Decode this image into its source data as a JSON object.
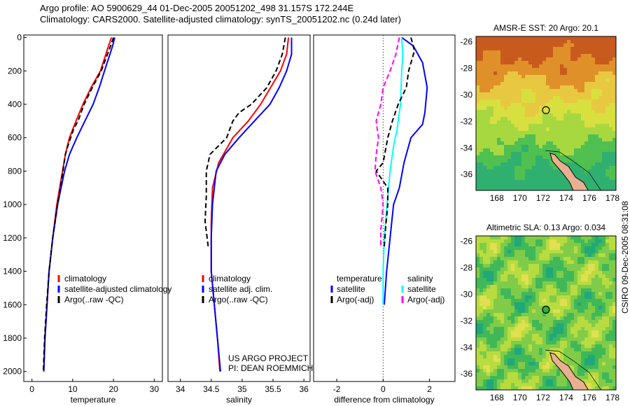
{
  "header": {
    "line1": "Argo profile: AO 5900629_44 01-Dec-2005 20051202_498 31.157S 172.244E",
    "line2": "Climatology: CARS2000. Satellite-adjusted climatology: synTS_20051202.nc (0.24d later)"
  },
  "credit": {
    "project": "US ARGO PROJECT",
    "pi": "PI: DEAN ROEMMICH",
    "stamp": "CSIRO 09-Dec-2005 08:31:08"
  },
  "colors": {
    "clim": "#ff0000",
    "sat": "#0000ff",
    "argo": "#000000",
    "sal_sat": "#00ffff",
    "sal_argo": "#ff00ff"
  },
  "chart_data": [
    {
      "type": "line",
      "name": "temperature",
      "xlabel": "temperature",
      "xlim": [
        -2,
        32
      ],
      "ylim": [
        -15,
        2060
      ],
      "y_inverted": true,
      "xticks": [
        0,
        10,
        20,
        30
      ],
      "yticks": [
        0,
        200,
        400,
        600,
        800,
        1000,
        1200,
        1400,
        1600,
        1800,
        2000
      ],
      "legend": [
        "climatology",
        "satellite-adjusted climatology",
        "Argo(..raw -QC)"
      ],
      "legend_placement": "bottom-right",
      "series": [
        {
          "name": "climatology",
          "color": "#ff0000",
          "dash": false,
          "points": [
            [
              19.5,
              0
            ],
            [
              18.8,
              50
            ],
            [
              16.8,
              200
            ],
            [
              14.5,
              300
            ],
            [
              12.5,
              400
            ],
            [
              10.8,
              500
            ],
            [
              9.2,
              600
            ],
            [
              8.2,
              700
            ],
            [
              7.5,
              800
            ],
            [
              6.1,
              1000
            ],
            [
              5.1,
              1200
            ],
            [
              4.2,
              1400
            ],
            [
              3.7,
              1600
            ],
            [
              3.2,
              1800
            ],
            [
              2.9,
              2000
            ]
          ]
        },
        {
          "name": "satellite-adjusted climatology",
          "color": "#0000ff",
          "dash": false,
          "points": [
            [
              20.3,
              0
            ],
            [
              19.8,
              50
            ],
            [
              17.8,
              200
            ],
            [
              16.5,
              300
            ],
            [
              15,
              400
            ],
            [
              13,
              500
            ],
            [
              11,
              600
            ],
            [
              9.2,
              700
            ],
            [
              8,
              800
            ],
            [
              6.3,
              1000
            ],
            [
              5.1,
              1200
            ],
            [
              4.2,
              1400
            ],
            [
              3.7,
              1600
            ],
            [
              3.2,
              1800
            ],
            [
              2.9,
              2000
            ]
          ]
        },
        {
          "name": "Argo(..raw -QC)",
          "color": "#000000",
          "dash": true,
          "points": [
            [
              20,
              0
            ],
            [
              19.3,
              50
            ],
            [
              17,
              200
            ],
            [
              14.8,
              300
            ],
            [
              12.8,
              400
            ],
            [
              11.3,
              500
            ],
            [
              10.2,
              550
            ],
            [
              8.8,
              650
            ],
            [
              8.2,
              700
            ],
            [
              7.6,
              800
            ],
            [
              6.3,
              1000
            ],
            [
              5.1,
              1200
            ],
            [
              4.2,
              1400
            ],
            [
              3.6,
              1600
            ],
            [
              3.1,
              1800
            ],
            [
              2.8,
              2000
            ]
          ]
        }
      ]
    },
    {
      "type": "line",
      "name": "salinity",
      "xlabel": "salinity",
      "xlim": [
        33.8,
        36.1
      ],
      "ylim": [
        -15,
        2060
      ],
      "y_inverted": true,
      "xticks": [
        34,
        34.5,
        35,
        35.5,
        36
      ],
      "legend": [
        "climatology",
        "satellite adj. clim.",
        "Argo(..raw -QC)"
      ],
      "legend_placement": "bottom-right",
      "series": [
        {
          "name": "climatology",
          "color": "#ff0000",
          "dash": false,
          "points": [
            [
              35.75,
              0
            ],
            [
              35.72,
              100
            ],
            [
              35.62,
              200
            ],
            [
              35.3,
              400
            ],
            [
              35.1,
              500
            ],
            [
              34.85,
              600
            ],
            [
              34.62,
              750
            ],
            [
              34.52,
              900
            ],
            [
              34.5,
              1100
            ],
            [
              34.5,
              1400
            ],
            [
              34.55,
              1600
            ],
            [
              34.6,
              1800
            ],
            [
              34.64,
              2000
            ]
          ]
        },
        {
          "name": "satellite adj. clim.",
          "color": "#0000ff",
          "dash": false,
          "points": [
            [
              35.8,
              0
            ],
            [
              35.8,
              100
            ],
            [
              35.72,
              200
            ],
            [
              35.6,
              300
            ],
            [
              35.45,
              400
            ],
            [
              35.2,
              500
            ],
            [
              34.95,
              600
            ],
            [
              34.72,
              700
            ],
            [
              34.58,
              800
            ],
            [
              34.52,
              1000
            ],
            [
              34.5,
              1200
            ],
            [
              34.5,
              1400
            ],
            [
              34.55,
              1600
            ],
            [
              34.6,
              1800
            ],
            [
              34.65,
              2000
            ]
          ]
        },
        {
          "name": "Argo(..raw -QC)",
          "color": "#000000",
          "dash": true,
          "points": [
            [
              35.7,
              0
            ],
            [
              35.65,
              100
            ],
            [
              35.55,
              200
            ],
            [
              35.4,
              300
            ],
            [
              35.15,
              400
            ],
            [
              34.95,
              450
            ],
            [
              34.85,
              500
            ],
            [
              34.75,
              600
            ],
            [
              34.48,
              700
            ],
            [
              34.42,
              800
            ],
            [
              34.42,
              950
            ],
            [
              34.4,
              1100
            ],
            [
              34.45,
              1250
            ]
          ]
        }
      ]
    },
    {
      "type": "line",
      "name": "difference",
      "xlabel": "difference from climatology",
      "xlim": [
        -3,
        3.1
      ],
      "ylim": [
        -15,
        2060
      ],
      "y_inverted": true,
      "xticks": [
        -2,
        0,
        2
      ],
      "zero_line": true,
      "legend": {
        "temp_title": "temperature",
        "sal_title": "salinity",
        "temp_sat": "satellite",
        "temp_argo": "Argo(-adj)",
        "sal_sat": "satellite",
        "sal_argo": "Argo(-adj)"
      },
      "legend_placement": "bottom-right",
      "series": [
        {
          "name": "temperature satellite",
          "color": "#0000ff",
          "dash": false,
          "points": [
            [
              0.8,
              0
            ],
            [
              1.3,
              50
            ],
            [
              1.7,
              150
            ],
            [
              1.9,
              300
            ],
            [
              1.8,
              450
            ],
            [
              1.7,
              520
            ],
            [
              1.2,
              600
            ],
            [
              0.9,
              750
            ],
            [
              0.7,
              900
            ],
            [
              0.45,
              1000
            ],
            [
              0.3,
              1200
            ],
            [
              0.15,
              1400
            ],
            [
              0.05,
              1600
            ]
          ]
        },
        {
          "name": "salinity satellite",
          "color": "#00ffff",
          "dash": false,
          "points": [
            [
              0.8,
              0
            ],
            [
              0.85,
              100
            ],
            [
              0.8,
              200
            ],
            [
              0.75,
              400
            ],
            [
              0.6,
              550
            ],
            [
              0.45,
              650
            ],
            [
              0.3,
              800
            ],
            [
              0.2,
              950
            ],
            [
              0.05,
              1200
            ],
            [
              0,
              1400
            ],
            [
              0,
              1600
            ]
          ]
        },
        {
          "name": "temperature Argo(-adj)",
          "color": "#000000",
          "dash": true,
          "points": [
            [
              1.2,
              0
            ],
            [
              1.35,
              80
            ],
            [
              1.1,
              200
            ],
            [
              1.0,
              300
            ],
            [
              0.65,
              400
            ],
            [
              0.4,
              500
            ],
            [
              0.2,
              600
            ],
            [
              0,
              750
            ],
            [
              -0.3,
              800
            ],
            [
              0.2,
              900
            ],
            [
              0.2,
              1000
            ],
            [
              0.1,
              1150
            ],
            [
              0.05,
              1250
            ]
          ]
        },
        {
          "name": "salinity Argo(-adj)",
          "color": "#ff00ff",
          "dash": true,
          "points": [
            [
              0.7,
              0
            ],
            [
              0.55,
              100
            ],
            [
              0.3,
              200
            ],
            [
              0,
              300
            ],
            [
              -0.1,
              400
            ],
            [
              -0.3,
              500
            ],
            [
              -0.2,
              600
            ],
            [
              -0.3,
              700
            ],
            [
              -0.35,
              800
            ],
            [
              -0.1,
              900
            ],
            [
              0,
              1000
            ],
            [
              -0.1,
              1150
            ],
            [
              -0.1,
              1250
            ]
          ]
        }
      ]
    },
    {
      "type": "heatmap",
      "name": "AMSR-E SST",
      "title": "AMSR-E SST: 20 Argo: 20.1",
      "xticks": [
        168,
        170,
        172,
        174,
        176,
        178
      ],
      "yticks": [
        -26,
        -28,
        -30,
        -32,
        -34,
        -36
      ],
      "xlim": [
        166.2,
        178.3
      ],
      "ylim": [
        -37.2,
        -25.6
      ],
      "argo_position": [
        172.244,
        -31.157
      ],
      "palette": [
        "#c85a1e",
        "#e09028",
        "#e8c840",
        "#d8e040",
        "#a8d840",
        "#50c050",
        "#30b070"
      ]
    },
    {
      "type": "heatmap",
      "name": "Altimetric SLA",
      "title": "Altimetric SLA: 0.13 Argo: 0.034",
      "xticks": [
        168,
        170,
        172,
        174,
        176,
        178
      ],
      "yticks": [
        -26,
        -28,
        -30,
        -32,
        -34,
        -36
      ],
      "xlim": [
        166.2,
        178.3
      ],
      "ylim": [
        -37.2,
        -25.6
      ],
      "argo_position": [
        172.244,
        -31.157
      ],
      "palette": [
        "#20a878",
        "#40b858",
        "#80cc48",
        "#b8dc40",
        "#e0e050"
      ]
    }
  ]
}
